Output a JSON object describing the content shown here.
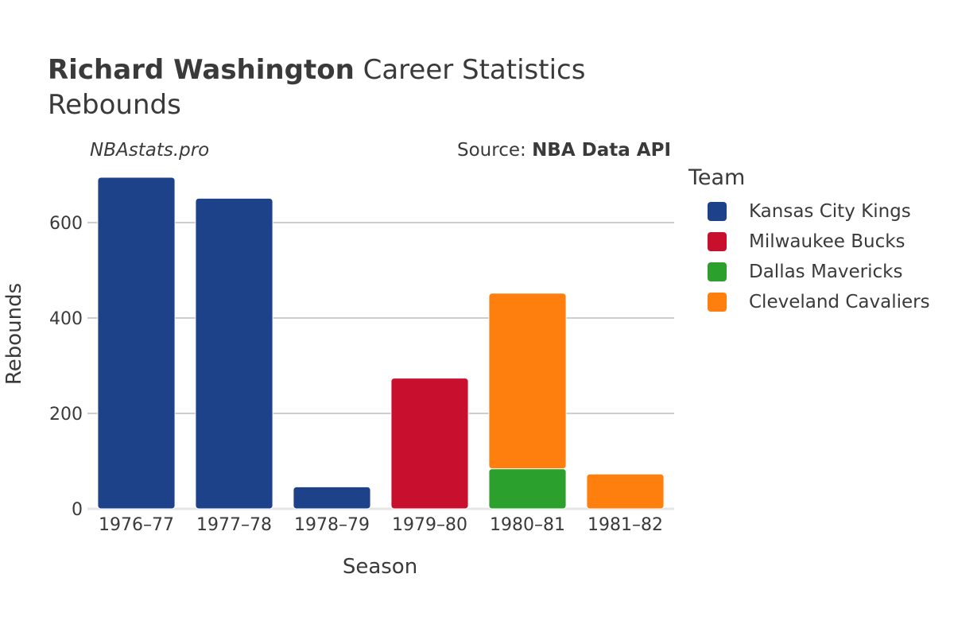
{
  "header": {
    "title_bold": "Richard Washington",
    "title_rest": " Career Statistics",
    "subtitle": "Rebounds",
    "watermark": "NBAstats.pro",
    "source_prefix": "Source: ",
    "source_bold": "NBA Data API"
  },
  "legend": {
    "title": "Team",
    "items": [
      {
        "label": "Kansas City Kings",
        "color": "#1d428a"
      },
      {
        "label": "Milwaukee Bucks",
        "color": "#c8102e"
      },
      {
        "label": "Dallas Mavericks",
        "color": "#2ca02c"
      },
      {
        "label": "Cleveland Cavaliers",
        "color": "#ff7f0e"
      }
    ]
  },
  "chart_data": {
    "type": "bar",
    "stacked": true,
    "xlabel": "Season",
    "ylabel": "Rebounds",
    "ylim": [
      0,
      700
    ],
    "yticks": [
      0,
      200,
      400,
      600
    ],
    "grid": true,
    "legend_position": "right",
    "categories": [
      "1976–77",
      "1977–78",
      "1978–79",
      "1979–80",
      "1980–81",
      "1981–82"
    ],
    "series": [
      {
        "name": "Kansas City Kings",
        "color": "#1d428a",
        "values": [
          695,
          651,
          46,
          0,
          0,
          0
        ]
      },
      {
        "name": "Milwaukee Bucks",
        "color": "#c8102e",
        "values": [
          0,
          0,
          0,
          274,
          0,
          0
        ]
      },
      {
        "name": "Dallas Mavericks",
        "color": "#2ca02c",
        "values": [
          0,
          0,
          0,
          0,
          84,
          0
        ]
      },
      {
        "name": "Cleveland Cavaliers",
        "color": "#ff7f0e",
        "values": [
          0,
          0,
          0,
          0,
          368,
          73
        ]
      }
    ]
  }
}
